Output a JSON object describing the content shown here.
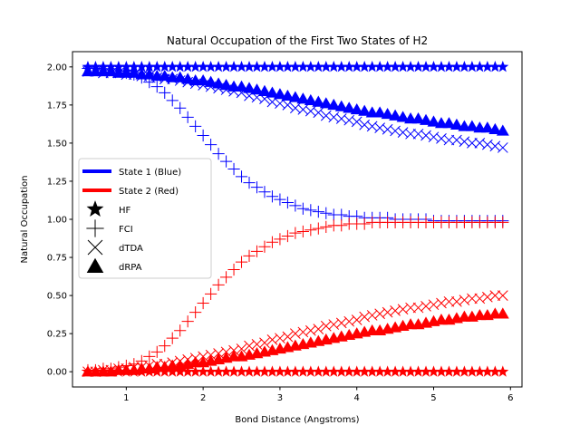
{
  "chart_data": {
    "type": "scatter",
    "title": "Natural Occupation of the First Two States of H2",
    "xlabel": "Bond Distance (Angstroms)",
    "ylabel": "Natural Occupation",
    "xlim": [
      0.3,
      6.15
    ],
    "ylim": [
      -0.1,
      2.1
    ],
    "xticks": [
      1,
      2,
      3,
      4,
      5,
      6
    ],
    "yticks": [
      0.0,
      0.25,
      0.5,
      0.75,
      1.0,
      1.25,
      1.5,
      1.75,
      2.0
    ],
    "ytick_labels": [
      "0.00",
      "0.25",
      "0.50",
      "0.75",
      "1.00",
      "1.25",
      "1.50",
      "1.75",
      "2.00"
    ],
    "grid": false,
    "legend_placement": "center-left",
    "colors": {
      "state1": "#0000ff",
      "state2": "#ff0000"
    },
    "legend": [
      {
        "label": "State 1 (Blue)",
        "kind": "line",
        "color": "#0000ff"
      },
      {
        "label": "State 2 (Red)",
        "kind": "line",
        "color": "#ff0000"
      },
      {
        "label": "HF",
        "kind": "star",
        "color": "#000000"
      },
      {
        "label": "FCI",
        "kind": "plus",
        "color": "#000000"
      },
      {
        "label": "dTDA",
        "kind": "x",
        "color": "#000000"
      },
      {
        "label": "dRPA",
        "kind": "triangle",
        "color": "#000000"
      }
    ],
    "x": [
      0.5,
      0.6,
      0.7,
      0.8,
      0.9,
      1.0,
      1.1,
      1.2,
      1.3,
      1.4,
      1.5,
      1.6,
      1.7,
      1.8,
      1.9,
      2.0,
      2.1,
      2.2,
      2.3,
      2.4,
      2.5,
      2.6,
      2.7,
      2.8,
      2.9,
      3.0,
      3.1,
      3.2,
      3.3,
      3.4,
      3.5,
      3.6,
      3.7,
      3.8,
      3.9,
      4.0,
      4.1,
      4.2,
      4.3,
      4.4,
      4.5,
      4.6,
      4.7,
      4.8,
      4.9,
      5.0,
      5.1,
      5.2,
      5.3,
      5.4,
      5.5,
      5.6,
      5.7,
      5.8,
      5.9
    ],
    "series": [
      {
        "method": "HF",
        "state": 1,
        "marker": "star",
        "color": "#0000ff",
        "values": [
          2.0,
          2.0,
          2.0,
          2.0,
          2.0,
          2.0,
          2.0,
          2.0,
          2.0,
          2.0,
          2.0,
          2.0,
          2.0,
          2.0,
          2.0,
          2.0,
          2.0,
          2.0,
          2.0,
          2.0,
          2.0,
          2.0,
          2.0,
          2.0,
          2.0,
          2.0,
          2.0,
          2.0,
          2.0,
          2.0,
          2.0,
          2.0,
          2.0,
          2.0,
          2.0,
          2.0,
          2.0,
          2.0,
          2.0,
          2.0,
          2.0,
          2.0,
          2.0,
          2.0,
          2.0,
          2.0,
          2.0,
          2.0,
          2.0,
          2.0,
          2.0,
          2.0,
          2.0,
          2.0,
          2.0
        ]
      },
      {
        "method": "HF",
        "state": 2,
        "marker": "star",
        "color": "#ff0000",
        "values": [
          0.0,
          0.0,
          0.0,
          0.0,
          0.0,
          0.0,
          0.0,
          0.0,
          0.0,
          0.0,
          0.0,
          0.0,
          0.0,
          0.0,
          0.0,
          0.0,
          0.0,
          0.0,
          0.0,
          0.0,
          0.0,
          0.0,
          0.0,
          0.0,
          0.0,
          0.0,
          0.0,
          0.0,
          0.0,
          0.0,
          0.0,
          0.0,
          0.0,
          0.0,
          0.0,
          0.0,
          0.0,
          0.0,
          0.0,
          0.0,
          0.0,
          0.0,
          0.0,
          0.0,
          0.0,
          0.0,
          0.0,
          0.0,
          0.0,
          0.0,
          0.0,
          0.0,
          0.0,
          0.0,
          0.0
        ]
      },
      {
        "method": "FCI",
        "state": 1,
        "marker": "plus",
        "color": "#0000ff",
        "values": [
          1.99,
          1.99,
          1.98,
          1.98,
          1.97,
          1.96,
          1.95,
          1.93,
          1.9,
          1.87,
          1.83,
          1.78,
          1.73,
          1.67,
          1.61,
          1.55,
          1.49,
          1.43,
          1.38,
          1.33,
          1.28,
          1.24,
          1.21,
          1.18,
          1.15,
          1.13,
          1.11,
          1.09,
          1.07,
          1.06,
          1.05,
          1.04,
          1.03,
          1.03,
          1.02,
          1.02,
          1.01,
          1.01,
          1.01,
          1.01,
          1.0,
          1.0,
          1.0,
          1.0,
          1.0,
          0.99,
          0.99,
          0.99,
          0.99,
          0.99,
          0.99,
          0.99,
          0.99,
          0.99,
          0.99
        ]
      },
      {
        "method": "FCI",
        "state": 2,
        "marker": "plus",
        "color": "#ff0000",
        "values": [
          0.01,
          0.01,
          0.02,
          0.02,
          0.03,
          0.04,
          0.05,
          0.07,
          0.1,
          0.13,
          0.17,
          0.22,
          0.27,
          0.33,
          0.39,
          0.45,
          0.51,
          0.57,
          0.62,
          0.67,
          0.72,
          0.76,
          0.79,
          0.82,
          0.85,
          0.87,
          0.89,
          0.91,
          0.92,
          0.93,
          0.94,
          0.95,
          0.96,
          0.96,
          0.97,
          0.97,
          0.97,
          0.98,
          0.98,
          0.98,
          0.98,
          0.98,
          0.98,
          0.98,
          0.98,
          0.98,
          0.98,
          0.98,
          0.98,
          0.98,
          0.98,
          0.98,
          0.98,
          0.98,
          0.98
        ]
      },
      {
        "method": "dTDA",
        "state": 1,
        "marker": "x",
        "color": "#0000ff",
        "values": [
          1.97,
          1.97,
          1.96,
          1.96,
          1.96,
          1.95,
          1.95,
          1.94,
          1.94,
          1.93,
          1.92,
          1.92,
          1.91,
          1.9,
          1.89,
          1.88,
          1.87,
          1.86,
          1.85,
          1.84,
          1.83,
          1.81,
          1.8,
          1.79,
          1.77,
          1.76,
          1.75,
          1.73,
          1.72,
          1.71,
          1.7,
          1.68,
          1.67,
          1.66,
          1.65,
          1.64,
          1.62,
          1.61,
          1.6,
          1.59,
          1.58,
          1.57,
          1.56,
          1.56,
          1.55,
          1.54,
          1.53,
          1.52,
          1.52,
          1.51,
          1.5,
          1.5,
          1.49,
          1.48,
          1.47
        ]
      },
      {
        "method": "dTDA",
        "state": 2,
        "marker": "x",
        "color": "#ff0000",
        "values": [
          0.0,
          0.0,
          0.01,
          0.01,
          0.02,
          0.02,
          0.03,
          0.03,
          0.04,
          0.05,
          0.05,
          0.06,
          0.07,
          0.08,
          0.09,
          0.1,
          0.11,
          0.12,
          0.13,
          0.14,
          0.15,
          0.17,
          0.18,
          0.19,
          0.21,
          0.22,
          0.23,
          0.25,
          0.26,
          0.27,
          0.28,
          0.3,
          0.31,
          0.32,
          0.33,
          0.34,
          0.36,
          0.37,
          0.38,
          0.39,
          0.4,
          0.41,
          0.42,
          0.42,
          0.43,
          0.44,
          0.45,
          0.46,
          0.46,
          0.47,
          0.48,
          0.48,
          0.49,
          0.5,
          0.5
        ]
      },
      {
        "method": "dRPA",
        "state": 1,
        "marker": "triangle",
        "color": "#0000ff",
        "values": [
          1.97,
          1.97,
          1.97,
          1.97,
          1.96,
          1.96,
          1.96,
          1.95,
          1.95,
          1.94,
          1.94,
          1.93,
          1.93,
          1.92,
          1.91,
          1.91,
          1.9,
          1.89,
          1.88,
          1.87,
          1.87,
          1.86,
          1.85,
          1.84,
          1.83,
          1.82,
          1.81,
          1.8,
          1.79,
          1.78,
          1.77,
          1.76,
          1.75,
          1.74,
          1.73,
          1.72,
          1.71,
          1.7,
          1.7,
          1.69,
          1.68,
          1.67,
          1.66,
          1.66,
          1.65,
          1.64,
          1.63,
          1.63,
          1.62,
          1.61,
          1.61,
          1.6,
          1.6,
          1.59,
          1.58
        ]
      },
      {
        "method": "dRPA",
        "state": 2,
        "marker": "triangle",
        "color": "#ff0000",
        "values": [
          0.0,
          0.0,
          0.0,
          0.0,
          0.01,
          0.01,
          0.01,
          0.02,
          0.02,
          0.03,
          0.03,
          0.04,
          0.04,
          0.05,
          0.06,
          0.06,
          0.07,
          0.08,
          0.09,
          0.1,
          0.1,
          0.11,
          0.12,
          0.13,
          0.14,
          0.15,
          0.16,
          0.17,
          0.18,
          0.19,
          0.2,
          0.21,
          0.22,
          0.23,
          0.24,
          0.25,
          0.26,
          0.27,
          0.27,
          0.28,
          0.29,
          0.3,
          0.31,
          0.31,
          0.32,
          0.33,
          0.34,
          0.34,
          0.35,
          0.36,
          0.36,
          0.37,
          0.37,
          0.38,
          0.38
        ]
      }
    ]
  }
}
